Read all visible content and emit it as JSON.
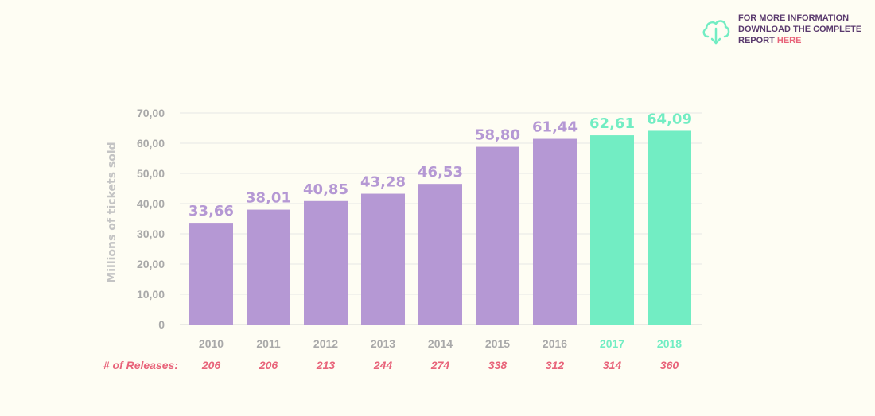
{
  "info": {
    "line1": "FOR MORE INFORMATION",
    "line2": "DOWNLOAD THE COMPLETE",
    "line3": "REPORT",
    "link": "HERE",
    "icon": "cloud-download-icon"
  },
  "colors": {
    "primary": "#b598d4",
    "highlight": "#72edc3",
    "axis_text": "#a9a9a9",
    "releases": "#e8647a",
    "grid": "#e6e6e6"
  },
  "chart_data": {
    "type": "bar",
    "ylabel": "Millions of tickets sold",
    "ylim": [
      0,
      70
    ],
    "yticks": [
      "0",
      "10,00",
      "20,00",
      "30,00",
      "40,00",
      "50,00",
      "60,00",
      "70,00"
    ],
    "grid": true,
    "categories": [
      "2010",
      "2011",
      "2012",
      "2013",
      "2014",
      "2015",
      "2016",
      "2017",
      "2018"
    ],
    "values": [
      33.66,
      38.01,
      40.85,
      43.28,
      46.53,
      58.8,
      61.44,
      62.61,
      64.09
    ],
    "value_labels": [
      "33,66",
      "38,01",
      "40,85",
      "43,28",
      "46,53",
      "58,80",
      "61,44",
      "62,61",
      "64,09"
    ],
    "highlighted": [
      false,
      false,
      false,
      false,
      false,
      false,
      false,
      true,
      true
    ],
    "releases_label": "# of Releases:",
    "releases": [
      "206",
      "206",
      "213",
      "244",
      "274",
      "338",
      "312",
      "314",
      "360"
    ]
  }
}
